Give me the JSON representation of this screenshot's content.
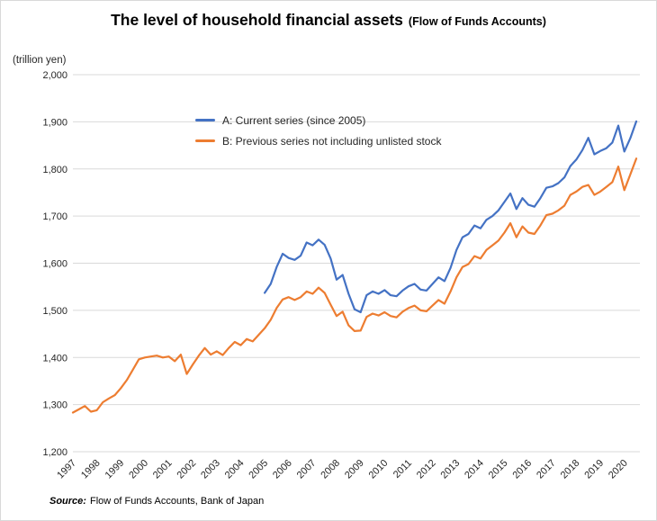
{
  "title": {
    "main": "The level of household financial assets",
    "paren": "(Flow of Funds Accounts)"
  },
  "source": {
    "label": "Source:",
    "text": "Flow of Funds Accounts, Bank of Japan"
  },
  "colors": {
    "series_a": "#4472C4",
    "series_b": "#ED7D31",
    "gridline": "#d9d9d9",
    "tick_text": "#262626"
  },
  "chart_data": {
    "type": "line",
    "title": "The level of household financial assets (Flow of Funds Accounts)",
    "xlabel": "",
    "ylabel": "(trillion yen)",
    "ylim": [
      1200,
      2000
    ],
    "ytick_step": 100,
    "grid": "horizontal-only",
    "legend_position": "inside-top-center",
    "yticks": [
      {
        "label": "2,000",
        "value": 2000
      },
      {
        "label": "1,900",
        "value": 1900
      },
      {
        "label": "1,800",
        "value": 1800
      },
      {
        "label": "1,700",
        "value": 1700
      },
      {
        "label": "1,600",
        "value": 1600
      },
      {
        "label": "1,500",
        "value": 1500
      },
      {
        "label": "1,400",
        "value": 1400
      },
      {
        "label": "1,300",
        "value": 1300
      },
      {
        "label": "1,200",
        "value": 1200
      }
    ],
    "x_years": [
      "1997",
      "1998",
      "1999",
      "2000",
      "2001",
      "2002",
      "2003",
      "2004",
      "2005",
      "2006",
      "2007",
      "2008",
      "2009",
      "2010",
      "2011",
      "2012",
      "2013",
      "2014",
      "2015",
      "2016",
      "2017",
      "2018",
      "2019",
      "2020"
    ],
    "frequency": "quarterly",
    "series": [
      {
        "name": "A: Current series (since 2005)",
        "color": "#4472C4",
        "start_year": 2005,
        "start_quarter": 1,
        "end_label": "2020Q3",
        "values": [
          1537,
          1556,
          1592,
          1620,
          1611,
          1607,
          1616,
          1644,
          1638,
          1650,
          1639,
          1610,
          1565,
          1575,
          1535,
          1502,
          1496,
          1532,
          1540,
          1535,
          1543,
          1532,
          1530,
          1542,
          1551,
          1556,
          1544,
          1542,
          1556,
          1570,
          1562,
          1590,
          1628,
          1655,
          1662,
          1680,
          1674,
          1692,
          1700,
          1712,
          1730,
          1748,
          1715,
          1738,
          1724,
          1720,
          1738,
          1760,
          1763,
          1770,
          1782,
          1806,
          1820,
          1840,
          1866,
          1831,
          1838,
          1844,
          1856,
          1892,
          1837,
          1865,
          1901
        ]
      },
      {
        "name": "B: Previous series not including unlisted stock",
        "color": "#ED7D31",
        "start_year": 1997,
        "start_quarter": 1,
        "end_label": "2020Q3",
        "values": [
          1283,
          1290,
          1297,
          1285,
          1288,
          1305,
          1313,
          1320,
          1335,
          1352,
          1374,
          1396,
          1400,
          1402,
          1404,
          1400,
          1402,
          1392,
          1406,
          1365,
          1385,
          1404,
          1420,
          1406,
          1413,
          1405,
          1420,
          1433,
          1426,
          1439,
          1434,
          1448,
          1462,
          1480,
          1505,
          1523,
          1528,
          1522,
          1528,
          1540,
          1535,
          1548,
          1537,
          1512,
          1488,
          1497,
          1468,
          1456,
          1457,
          1486,
          1493,
          1489,
          1496,
          1488,
          1485,
          1497,
          1505,
          1510,
          1500,
          1498,
          1510,
          1522,
          1514,
          1540,
          1570,
          1592,
          1598,
          1615,
          1610,
          1628,
          1638,
          1648,
          1665,
          1685,
          1655,
          1678,
          1665,
          1662,
          1680,
          1702,
          1705,
          1712,
          1722,
          1745,
          1752,
          1762,
          1766,
          1745,
          1752,
          1762,
          1772,
          1805,
          1755,
          1788,
          1822
        ]
      }
    ]
  }
}
